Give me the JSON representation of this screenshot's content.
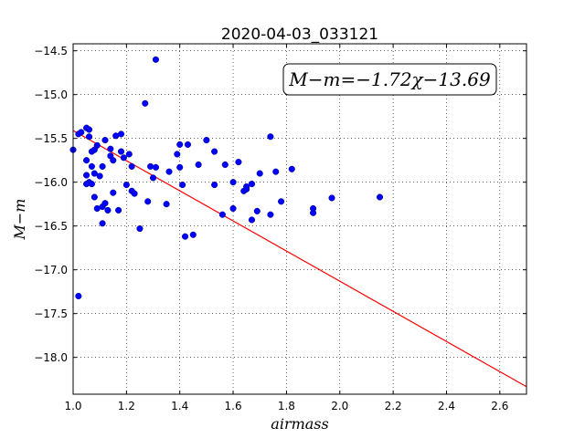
{
  "chart_data": {
    "type": "scatter",
    "title": "2020-04-03_033121",
    "xlabel": "airmass",
    "ylabel": "M−m",
    "xlim": [
      1.0,
      2.7
    ],
    "ylim": [
      -18.42,
      -14.42
    ],
    "y_inverted": true,
    "grid": true,
    "xticks": [
      1.0,
      1.2,
      1.4,
      1.6,
      1.8,
      2.0,
      2.2,
      2.4,
      2.6
    ],
    "xtick_labels": [
      "1.0",
      "1.2",
      "1.4",
      "1.6",
      "1.8",
      "2.0",
      "2.2",
      "2.4",
      "2.6"
    ],
    "yticks": [
      -14.5,
      -15.0,
      -15.5,
      -16.0,
      -16.5,
      -17.0,
      -17.5,
      -18.0
    ],
    "ytick_labels": [
      "−14.5",
      "−15.0",
      "−15.5",
      "−16.0",
      "−16.5",
      "−17.0",
      "−17.5",
      "−18.0"
    ],
    "annotation": "M−m=−1.72χ−13.69",
    "fit": {
      "slope": -1.72,
      "intercept": -13.69,
      "x": [
        1.0,
        2.7
      ],
      "color": "#ff0000"
    },
    "point_color": "#0000ff",
    "points": [
      [
        1.0,
        -15.63
      ],
      [
        1.02,
        -15.45
      ],
      [
        1.03,
        -15.43
      ],
      [
        1.05,
        -15.38
      ],
      [
        1.06,
        -15.4
      ],
      [
        1.05,
        -15.75
      ],
      [
        1.06,
        -15.48
      ],
      [
        1.07,
        -15.65
      ],
      [
        1.08,
        -15.63
      ],
      [
        1.09,
        -15.58
      ],
      [
        1.05,
        -15.92
      ],
      [
        1.06,
        -16.0
      ],
      [
        1.07,
        -15.82
      ],
      [
        1.08,
        -15.9
      ],
      [
        1.1,
        -15.93
      ],
      [
        1.05,
        -16.02
      ],
      [
        1.07,
        -16.02
      ],
      [
        1.08,
        -16.17
      ],
      [
        1.09,
        -16.3
      ],
      [
        1.11,
        -16.28
      ],
      [
        1.12,
        -16.24
      ],
      [
        1.13,
        -16.32
      ],
      [
        1.11,
        -16.47
      ],
      [
        1.11,
        -15.82
      ],
      [
        1.12,
        -15.52
      ],
      [
        1.14,
        -15.62
      ],
      [
        1.14,
        -15.7
      ],
      [
        1.15,
        -15.75
      ],
      [
        1.16,
        -15.47
      ],
      [
        1.18,
        -15.45
      ],
      [
        1.15,
        -16.12
      ],
      [
        1.17,
        -16.32
      ],
      [
        1.18,
        -15.65
      ],
      [
        1.19,
        -15.72
      ],
      [
        1.21,
        -15.68
      ],
      [
        1.2,
        -16.03
      ],
      [
        1.22,
        -16.1
      ],
      [
        1.23,
        -16.13
      ],
      [
        1.22,
        -15.82
      ],
      [
        1.25,
        -16.53
      ],
      [
        1.27,
        -15.1
      ],
      [
        1.28,
        -16.22
      ],
      [
        1.29,
        -15.82
      ],
      [
        1.3,
        -15.95
      ],
      [
        1.31,
        -14.6
      ],
      [
        1.31,
        -15.83
      ],
      [
        1.35,
        -16.25
      ],
      [
        1.36,
        -15.88
      ],
      [
        1.39,
        -15.68
      ],
      [
        1.4,
        -15.57
      ],
      [
        1.4,
        -15.83
      ],
      [
        1.41,
        -16.03
      ],
      [
        1.42,
        -16.62
      ],
      [
        1.43,
        -15.57
      ],
      [
        1.45,
        -16.6
      ],
      [
        1.47,
        -15.8
      ],
      [
        1.5,
        -15.52
      ],
      [
        1.53,
        -15.65
      ],
      [
        1.53,
        -16.03
      ],
      [
        1.56,
        -16.37
      ],
      [
        1.57,
        -15.8
      ],
      [
        1.6,
        -16.0
      ],
      [
        1.6,
        -16.3
      ],
      [
        1.62,
        -15.77
      ],
      [
        1.64,
        -16.1
      ],
      [
        1.65,
        -16.05
      ],
      [
        1.65,
        -16.08
      ],
      [
        1.67,
        -16.02
      ],
      [
        1.67,
        -16.43
      ],
      [
        1.69,
        -16.33
      ],
      [
        1.7,
        -15.9
      ],
      [
        1.74,
        -15.48
      ],
      [
        1.74,
        -16.37
      ],
      [
        1.76,
        -15.88
      ],
      [
        1.78,
        -16.22
      ],
      [
        1.82,
        -15.85
      ],
      [
        1.02,
        -17.3
      ],
      [
        1.9,
        -16.35
      ],
      [
        1.9,
        -16.3
      ],
      [
        1.97,
        -16.18
      ],
      [
        2.15,
        -16.17
      ]
    ]
  }
}
